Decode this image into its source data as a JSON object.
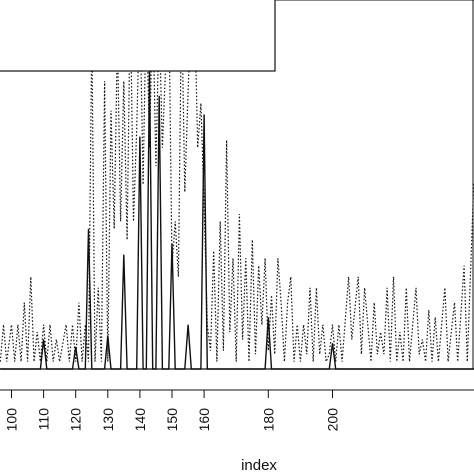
{
  "chart_data": {
    "type": "line",
    "title": "",
    "xlabel": "index",
    "ylabel": "",
    "xlim": [
      96.5,
      245
    ],
    "ylim": [
      0,
      100
    ],
    "grid": false,
    "legend": "top-left (partially visible box, text cropped)",
    "x_ticks": [
      100,
      110,
      120,
      130,
      140,
      150,
      160,
      180,
      200
    ],
    "colors": {
      "line": "#111111",
      "axis": "#111111",
      "background": "#ffffff"
    },
    "series": [
      {
        "style": "solid",
        "values": [
          [
            96.5,
            0
          ],
          [
            109,
            0
          ],
          [
            110,
            8
          ],
          [
            111,
            0
          ],
          [
            119,
            0
          ],
          [
            120,
            6
          ],
          [
            121,
            0
          ],
          [
            123,
            0
          ],
          [
            124,
            38
          ],
          [
            125,
            0
          ],
          [
            129,
            0
          ],
          [
            130,
            9
          ],
          [
            131,
            0
          ],
          [
            134,
            0
          ],
          [
            135,
            31
          ],
          [
            136,
            0
          ],
          [
            139,
            0
          ],
          [
            140,
            63
          ],
          [
            141,
            0
          ],
          [
            142,
            0
          ],
          [
            143,
            82
          ],
          [
            144,
            0
          ],
          [
            145,
            0
          ],
          [
            146,
            74
          ],
          [
            147,
            0
          ],
          [
            149,
            0
          ],
          [
            150,
            34
          ],
          [
            151,
            0
          ],
          [
            154,
            0
          ],
          [
            155,
            12
          ],
          [
            156,
            0
          ],
          [
            159,
            0
          ],
          [
            160,
            69
          ],
          [
            161,
            0
          ],
          [
            179,
            0
          ],
          [
            180,
            14
          ],
          [
            181,
            0
          ],
          [
            199,
            0
          ],
          [
            200,
            7
          ],
          [
            201,
            0
          ],
          [
            245,
            0
          ]
        ]
      },
      {
        "style": "dotted",
        "values": [
          [
            96.5,
            2
          ],
          [
            97.5,
            12
          ],
          [
            98.5,
            2
          ],
          [
            100,
            12
          ],
          [
            101,
            2
          ],
          [
            102,
            12
          ],
          [
            103,
            2
          ],
          [
            104,
            18
          ],
          [
            105,
            2
          ],
          [
            106,
            25
          ],
          [
            107,
            2
          ],
          [
            108,
            10
          ],
          [
            109,
            2
          ],
          [
            110,
            12
          ],
          [
            111,
            2
          ],
          [
            112,
            12
          ],
          [
            113,
            2
          ],
          [
            114,
            8
          ],
          [
            115,
            2
          ],
          [
            117,
            12
          ],
          [
            118,
            2
          ],
          [
            119,
            12
          ],
          [
            120,
            2
          ],
          [
            121,
            18
          ],
          [
            122,
            2
          ],
          [
            123,
            12
          ],
          [
            124,
            2
          ],
          [
            125,
            92
          ],
          [
            126,
            2
          ],
          [
            127,
            22
          ],
          [
            128,
            2
          ],
          [
            129,
            78
          ],
          [
            130,
            2
          ],
          [
            131,
            70
          ],
          [
            132,
            38
          ],
          [
            133,
            90
          ],
          [
            134,
            40
          ],
          [
            135,
            78
          ],
          [
            136,
            35
          ],
          [
            137,
            100
          ],
          [
            138,
            40
          ],
          [
            139,
            65
          ],
          [
            140,
            100
          ],
          [
            141,
            50
          ],
          [
            142,
            100
          ],
          [
            143,
            60
          ],
          [
            144,
            100
          ],
          [
            145,
            55
          ],
          [
            146,
            95
          ],
          [
            147,
            60
          ],
          [
            148,
            82
          ],
          [
            149,
            100
          ],
          [
            150,
            28
          ],
          [
            151,
            40
          ],
          [
            152,
            25
          ],
          [
            153,
            100
          ],
          [
            154,
            48
          ],
          [
            155,
            75
          ],
          [
            156,
            100
          ],
          [
            157,
            100
          ],
          [
            158,
            60
          ],
          [
            159,
            72
          ],
          [
            160,
            45
          ],
          [
            161,
            12
          ],
          [
            162,
            5
          ],
          [
            163,
            32
          ],
          [
            164,
            2
          ],
          [
            165,
            40
          ],
          [
            166,
            5
          ],
          [
            167,
            62
          ],
          [
            168,
            10
          ],
          [
            169,
            30
          ],
          [
            170,
            2
          ],
          [
            171,
            42
          ],
          [
            172,
            8
          ],
          [
            173,
            30
          ],
          [
            174,
            2
          ],
          [
            175,
            35
          ],
          [
            176,
            4
          ],
          [
            177,
            28
          ],
          [
            178,
            12
          ],
          [
            179,
            30
          ],
          [
            180,
            5
          ],
          [
            181,
            20
          ],
          [
            182,
            4
          ],
          [
            183,
            30
          ],
          [
            184,
            18
          ],
          [
            185,
            2
          ],
          [
            186,
            18
          ],
          [
            187,
            25
          ],
          [
            188,
            2
          ],
          [
            189,
            12
          ],
          [
            190,
            2
          ],
          [
            191,
            12
          ],
          [
            192,
            4
          ],
          [
            193,
            22
          ],
          [
            194,
            2
          ],
          [
            195,
            22
          ],
          [
            196,
            4
          ],
          [
            197,
            12
          ],
          [
            198,
            2
          ],
          [
            199,
            4
          ],
          [
            200,
            12
          ],
          [
            201,
            2
          ],
          [
            202,
            12
          ],
          [
            203,
            2
          ],
          [
            205,
            25
          ],
          [
            206,
            8
          ],
          [
            208,
            25
          ],
          [
            209,
            4
          ],
          [
            210,
            22
          ],
          [
            211,
            12
          ],
          [
            212,
            2
          ],
          [
            213,
            18
          ],
          [
            214,
            4
          ],
          [
            215,
            10
          ],
          [
            216,
            4
          ],
          [
            217,
            22
          ],
          [
            218,
            2
          ],
          [
            219,
            25
          ],
          [
            220,
            2
          ],
          [
            221,
            10
          ],
          [
            222,
            2
          ],
          [
            223,
            22
          ],
          [
            224,
            2
          ],
          [
            226,
            22
          ],
          [
            227,
            4
          ],
          [
            228,
            8
          ],
          [
            229,
            2
          ],
          [
            230,
            16
          ],
          [
            231,
            2
          ],
          [
            232,
            14
          ],
          [
            233,
            2
          ],
          [
            235,
            22
          ],
          [
            236,
            2
          ],
          [
            238,
            18
          ],
          [
            239,
            2
          ],
          [
            241,
            28
          ],
          [
            242,
            2
          ],
          [
            244,
            50
          ],
          [
            245,
            52
          ]
        ]
      }
    ]
  }
}
